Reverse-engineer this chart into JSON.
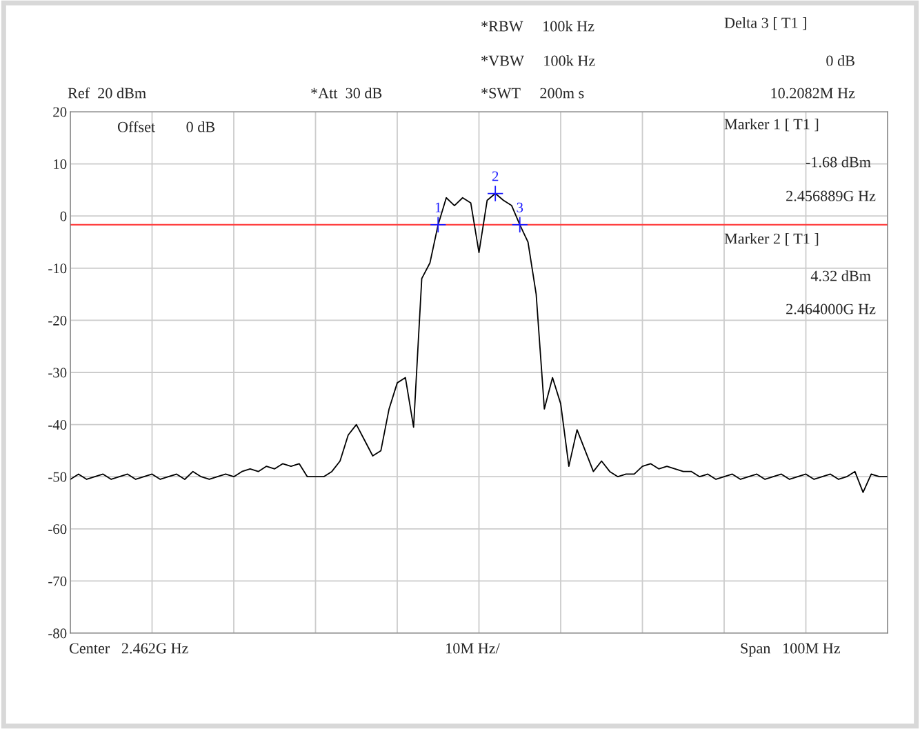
{
  "chart_data": {
    "type": "line",
    "categories": [
      null,
      null,
      null,
      null,
      null,
      null,
      null,
      null,
      null,
      null,
      null,
      null,
      null,
      null,
      null,
      null,
      null,
      null,
      null,
      null,
      null,
      null,
      null,
      null,
      null,
      null,
      null,
      null,
      null,
      null,
      null,
      null,
      null,
      null,
      null,
      null,
      null,
      null,
      null,
      null,
      null,
      null,
      null,
      null,
      null,
      null,
      null,
      null,
      null,
      null,
      null,
      null,
      null,
      null,
      null,
      null,
      null,
      null,
      null,
      null,
      null,
      null,
      null,
      null,
      null,
      null,
      null,
      null,
      null,
      null,
      null,
      null,
      null,
      null,
      null,
      null,
      null,
      null,
      null,
      null,
      null,
      null,
      null,
      null,
      null,
      null,
      null,
      null,
      null,
      null,
      null,
      null,
      null,
      null,
      null,
      null,
      null,
      null,
      null,
      null,
      null
    ],
    "series": [
      {
        "color": "#000000",
        "values": [
          -50.5,
          -49.5,
          -50.5,
          -50,
          -49.5,
          -50.5,
          -50,
          -49.5,
          -50.5,
          -50,
          -49.5,
          -50.5,
          -50,
          -49.5,
          -50.5,
          -49,
          -50,
          -50.5,
          -50,
          -49.5,
          -50,
          -49,
          -48.5,
          -49,
          -48,
          -48.5,
          -47.5,
          -48,
          -47.5,
          -50,
          -50,
          -50,
          -49,
          -47,
          -42,
          -40,
          -43,
          -46,
          -45,
          -37,
          -32,
          -31,
          -40.5,
          -12,
          -9,
          -1.68,
          3.5,
          2,
          3.5,
          2.5,
          -7,
          3,
          4.32,
          3,
          2,
          -1.68,
          -5,
          -15,
          -37,
          -31,
          -36,
          -48,
          -41,
          -45,
          -49,
          -47,
          -49,
          -50,
          -49.5,
          -49.5,
          -48,
          -47.5,
          -48.5,
          -48,
          -48.5,
          -49,
          -49,
          -50,
          -49.5,
          -50.5,
          -50,
          -49.5,
          -50.5,
          -50,
          -49.5,
          -50.5,
          -50,
          -49.5,
          -50.5,
          -50,
          -49.5,
          -50.5,
          -50,
          -49.5,
          -50.5,
          -50,
          -49,
          -53,
          -49.5,
          -50,
          -50
        ]
      }
    ],
    "ylim": [
      -80,
      20
    ],
    "yticks": [
      -80,
      -70,
      -60,
      -50,
      -40,
      -30,
      -20,
      -10,
      0,
      10,
      20
    ],
    "grid": true,
    "ref_lines": [
      {
        "axis": "y",
        "value": -1.68,
        "color": "#ff4040"
      }
    ],
    "annotations": [
      "Ref  20 dBm",
      "*Att  30 dB",
      "*RBW     100k Hz",
      "*VBW     100k Hz",
      "*SWT     200m s",
      "Delta 3 [ T1 ]",
      "0 dB",
      "10.2082M Hz",
      "Offset        0 dB",
      "Marker 1 [ T1 ]",
      "-1.68 dBm",
      "2.456889G Hz",
      "Marker 2 [ T1 ]",
      "4.32 dBm",
      "2.464000G Hz",
      "Center   2.462G Hz",
      "10M Hz/",
      "Span   100M Hz",
      {
        "text": "1",
        "y": -1.68
      },
      {
        "text": "2",
        "y": 4.32
      },
      {
        "text": "3",
        "y": -1.68
      }
    ]
  }
}
